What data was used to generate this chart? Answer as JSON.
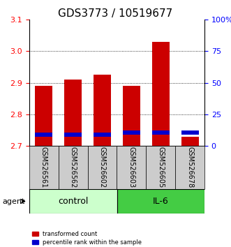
{
  "title": "GDS3773 / 10519677",
  "samples": [
    "GSM526561",
    "GSM526562",
    "GSM526602",
    "GSM526603",
    "GSM526605",
    "GSM526678"
  ],
  "red_tops": [
    2.89,
    2.91,
    2.925,
    2.89,
    3.03,
    2.728
  ],
  "blue_tops": [
    2.735,
    2.735,
    2.735,
    2.742,
    2.742,
    2.742
  ],
  "bar_bottom": 2.7,
  "ylim_min": 2.7,
  "ylim_max": 3.1,
  "y_ticks": [
    2.7,
    2.8,
    2.9,
    3.0,
    3.1
  ],
  "right_ticks": [
    0,
    25,
    50,
    75,
    100
  ],
  "right_tick_positions": [
    2.7,
    2.8,
    2.9,
    3.0,
    3.1
  ],
  "right_tick_labels": [
    "0",
    "25",
    "50",
    "75",
    "100%"
  ],
  "control_samples": [
    "GSM526561",
    "GSM526562",
    "GSM526602"
  ],
  "il6_samples": [
    "GSM526603",
    "GSM526605",
    "GSM526678"
  ],
  "control_label": "control",
  "il6_label": "IL-6",
  "agent_label": "agent",
  "bar_width": 0.6,
  "red_color": "#cc0000",
  "blue_color": "#0000cc",
  "control_bg": "#ccffcc",
  "il6_bg": "#44cc44",
  "sample_bg": "#cccccc",
  "legend_red": "transformed count",
  "legend_blue": "percentile rank within the sample",
  "title_fontsize": 11,
  "tick_fontsize": 8,
  "label_fontsize": 8,
  "sample_fontsize": 7
}
